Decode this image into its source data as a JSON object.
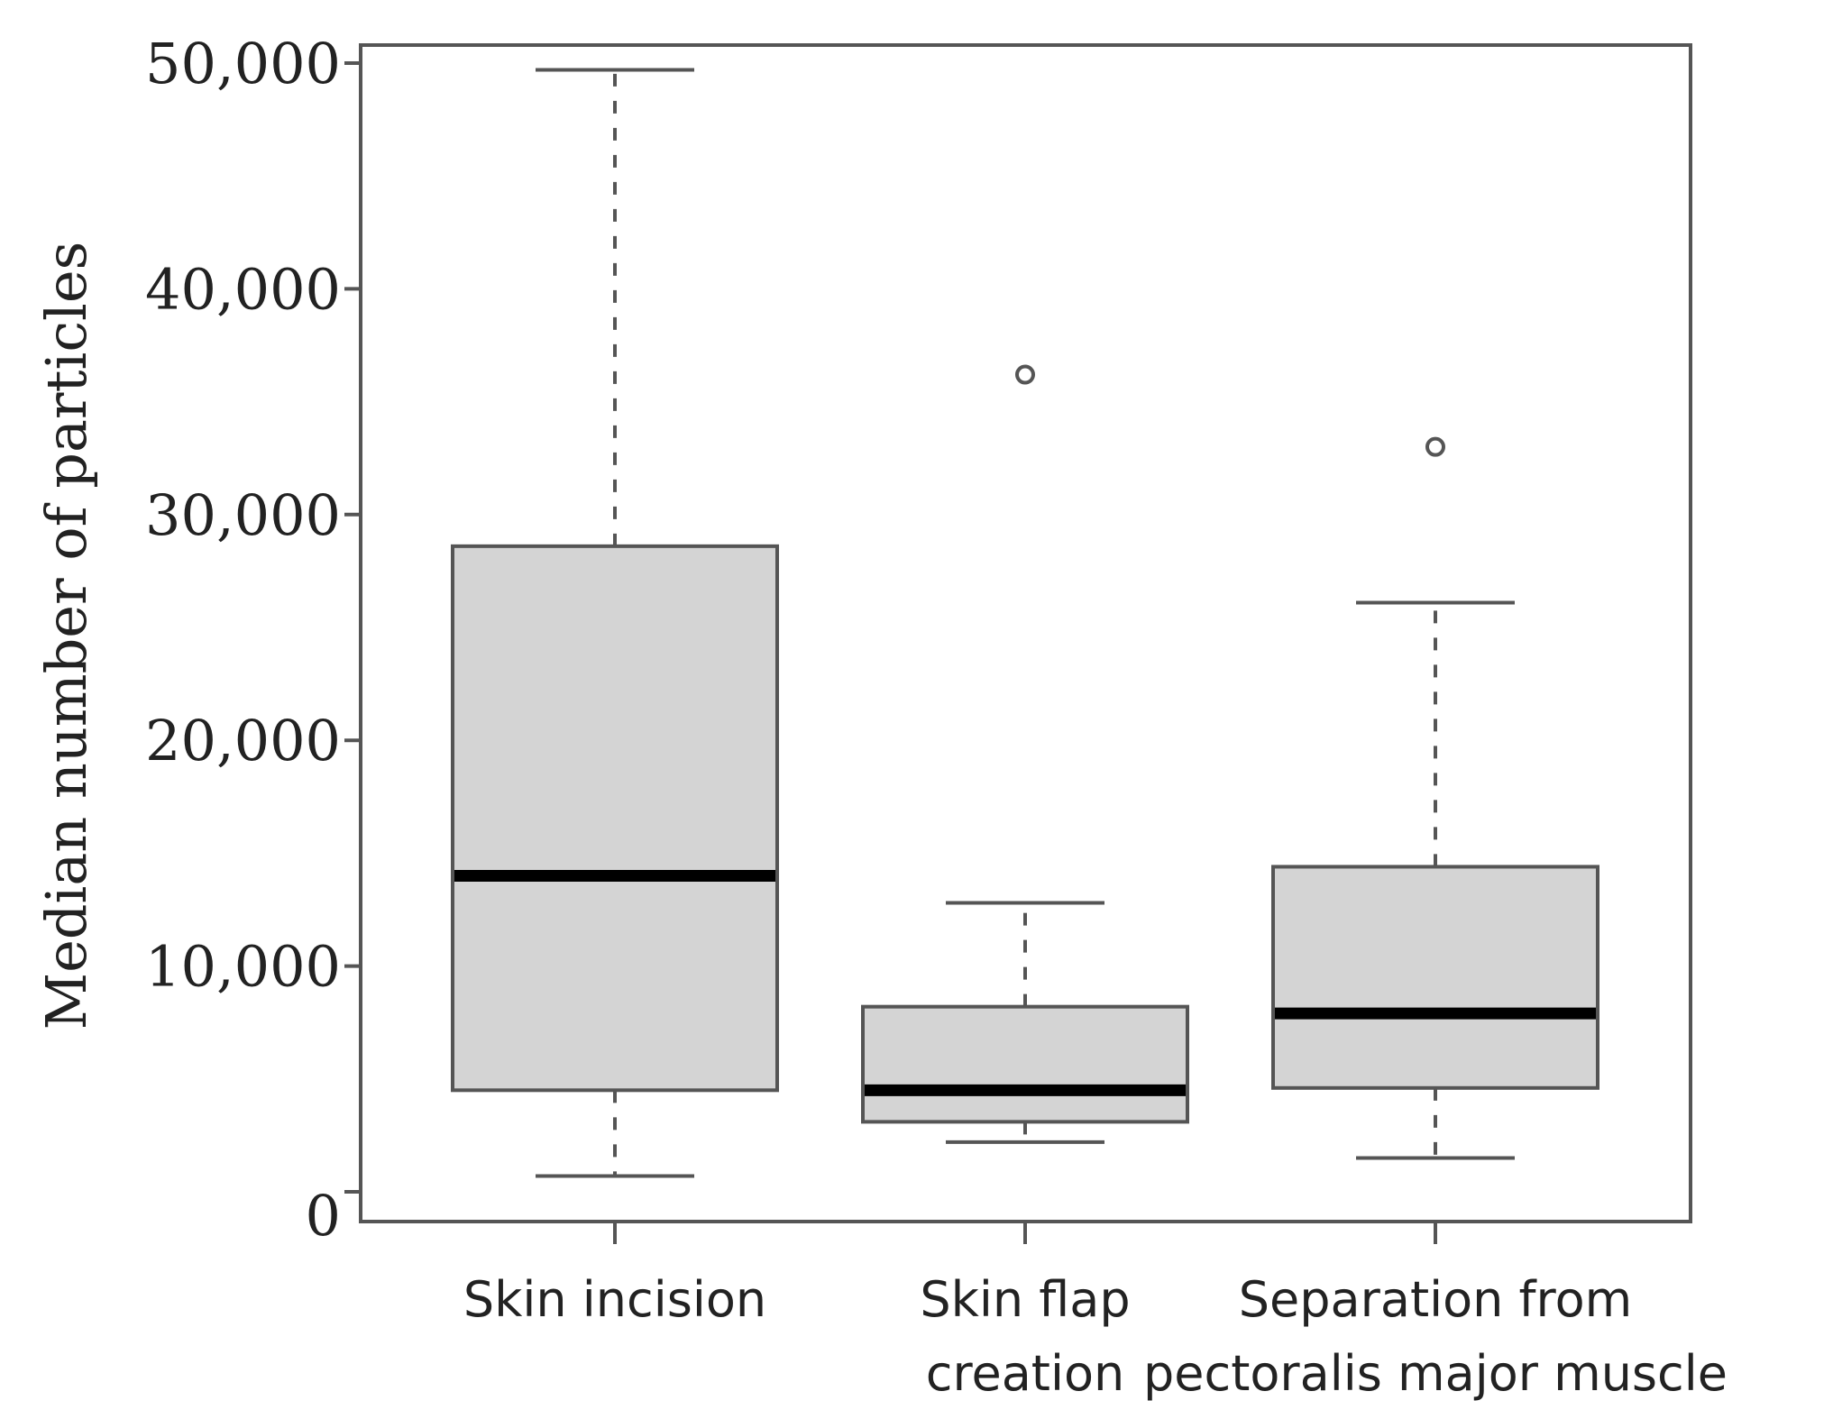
{
  "chart_data": {
    "type": "box",
    "ylabel": "Median number of particles",
    "ylim": [
      0,
      52000
    ],
    "yticks": [
      0,
      10000,
      20000,
      30000,
      40000,
      50000
    ],
    "ytick_labels": [
      "0",
      "10,000",
      "20,000",
      "30,000",
      "40,000",
      "50,000"
    ],
    "categories": [
      [
        "Skin incision"
      ],
      [
        "Skin flap",
        "creation"
      ],
      [
        "Separation from",
        "pectoralis major muscle"
      ]
    ],
    "boxes": [
      {
        "whisker_low": 700,
        "q1": 4500,
        "median": 14000,
        "q3": 28600,
        "whisker_high": 49700,
        "outliers": []
      },
      {
        "whisker_low": 2200,
        "q1": 3100,
        "median": 4500,
        "q3": 8200,
        "whisker_high": 12800,
        "outliers": [
          36200
        ]
      },
      {
        "whisker_low": 1500,
        "q1": 4600,
        "median": 7900,
        "q3": 14400,
        "whisker_high": 26100,
        "outliers": [
          33000
        ]
      }
    ],
    "grid": false,
    "colors": {
      "box_fill": "#d4d4d4",
      "stroke": "#555555",
      "median": "#000000"
    }
  }
}
